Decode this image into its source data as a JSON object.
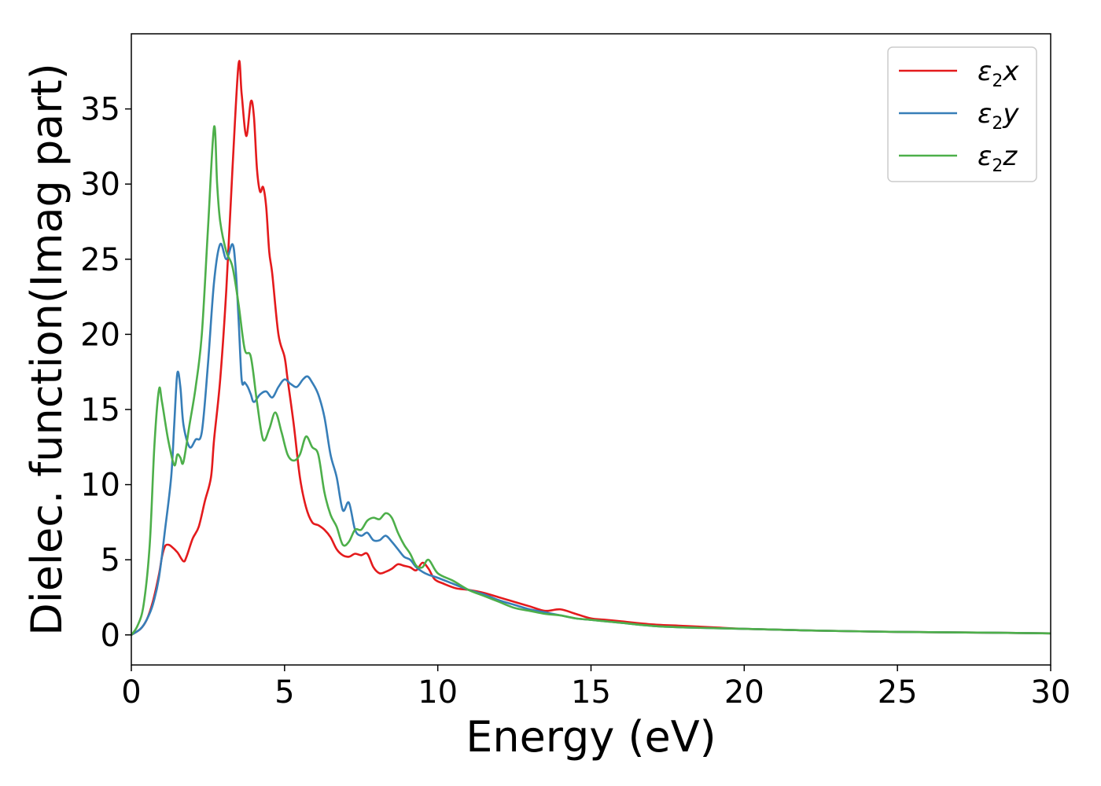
{
  "chart_data": {
    "type": "line",
    "title": "",
    "xlabel": "Energy (eV)",
    "ylabel": "Dielec. function(Imag part)",
    "xlim": [
      0,
      30
    ],
    "ylim": [
      -2,
      40
    ],
    "xticks": [
      0,
      5,
      10,
      15,
      20,
      25,
      30
    ],
    "yticks": [
      0,
      5,
      10,
      15,
      20,
      25,
      30,
      35
    ],
    "grid": false,
    "legend_position": "top-right",
    "series": [
      {
        "name": "ε2x",
        "legend": {
          "base": "ε",
          "sub": "2",
          "tail": "x"
        },
        "color": "#e41a1c",
        "x": [
          0,
          0.3,
          0.5,
          0.7,
          0.9,
          1.0,
          1.1,
          1.2,
          1.3,
          1.5,
          1.7,
          1.8,
          2.0,
          2.2,
          2.4,
          2.6,
          2.7,
          2.9,
          3.1,
          3.3,
          3.5,
          3.6,
          3.75,
          3.9,
          4.0,
          4.1,
          4.2,
          4.3,
          4.4,
          4.5,
          4.6,
          4.8,
          5.0,
          5.1,
          5.3,
          5.5,
          5.7,
          5.9,
          6.1,
          6.3,
          6.5,
          6.7,
          6.9,
          7.1,
          7.3,
          7.5,
          7.7,
          7.9,
          8.1,
          8.3,
          8.5,
          8.7,
          8.9,
          9.1,
          9.3,
          9.5,
          9.7,
          9.9,
          10.2,
          10.6,
          11.0,
          11.5,
          12.0,
          12.5,
          13.0,
          13.5,
          14.0,
          14.5,
          15.0,
          15.5,
          16.0,
          17.0,
          18.0,
          19.0,
          20.0,
          22.0,
          25.0,
          28.0,
          30.0
        ],
        "y": [
          0,
          0.4,
          1.0,
          2.2,
          4.0,
          5.2,
          5.9,
          6.0,
          5.9,
          5.5,
          4.9,
          5.2,
          6.4,
          7.2,
          8.9,
          10.5,
          13.0,
          17.0,
          23.0,
          31.0,
          38.0,
          36.0,
          33.2,
          35.5,
          34.5,
          31.0,
          29.5,
          29.8,
          28.5,
          25.5,
          24.0,
          20.0,
          18.5,
          17.0,
          14.0,
          10.5,
          8.5,
          7.5,
          7.3,
          7.0,
          6.5,
          5.7,
          5.3,
          5.2,
          5.4,
          5.3,
          5.4,
          4.5,
          4.1,
          4.2,
          4.4,
          4.7,
          4.6,
          4.5,
          4.3,
          4.8,
          4.4,
          3.7,
          3.4,
          3.1,
          3.0,
          2.8,
          2.5,
          2.2,
          1.9,
          1.6,
          1.7,
          1.4,
          1.1,
          1.0,
          0.9,
          0.7,
          0.6,
          0.5,
          0.4,
          0.3,
          0.2,
          0.15,
          0.1
        ]
      },
      {
        "name": "ε2y",
        "legend": {
          "base": "ε",
          "sub": "2",
          "tail": "y"
        },
        "color": "#377eb8",
        "x": [
          0,
          0.3,
          0.5,
          0.7,
          0.9,
          1.1,
          1.3,
          1.4,
          1.5,
          1.6,
          1.7,
          1.9,
          2.1,
          2.3,
          2.5,
          2.7,
          2.9,
          3.1,
          3.3,
          3.4,
          3.5,
          3.6,
          3.7,
          3.8,
          3.9,
          4.0,
          4.2,
          4.4,
          4.6,
          4.8,
          5.0,
          5.2,
          5.4,
          5.6,
          5.75,
          5.9,
          6.1,
          6.3,
          6.5,
          6.7,
          6.9,
          7.1,
          7.3,
          7.5,
          7.7,
          7.9,
          8.1,
          8.3,
          8.5,
          8.7,
          8.9,
          9.1,
          9.3,
          9.5,
          9.7,
          10.0,
          10.5,
          11.0,
          11.5,
          12.0,
          12.5,
          13.0,
          13.5,
          14.0,
          14.5,
          15.0,
          15.5,
          16.0,
          17.0,
          18.0,
          19.0,
          20.0,
          22.0,
          25.0,
          28.0,
          30.0
        ],
        "y": [
          0,
          0.4,
          1.0,
          2.0,
          3.8,
          7.0,
          10.5,
          14.0,
          17.4,
          16.5,
          14.0,
          12.5,
          13.0,
          13.5,
          18.0,
          23.5,
          26.0,
          25.0,
          26.0,
          24.5,
          21.0,
          17.0,
          16.8,
          16.5,
          16.0,
          15.5,
          16.0,
          16.2,
          15.8,
          16.5,
          17.0,
          16.7,
          16.5,
          17.0,
          17.2,
          16.8,
          16.0,
          14.5,
          12.0,
          10.5,
          8.3,
          8.8,
          7.0,
          6.6,
          6.8,
          6.3,
          6.3,
          6.6,
          6.2,
          5.7,
          5.2,
          5.0,
          4.5,
          4.2,
          4.0,
          3.8,
          3.4,
          3.0,
          2.7,
          2.3,
          2.0,
          1.7,
          1.5,
          1.3,
          1.1,
          1.0,
          0.9,
          0.8,
          0.6,
          0.5,
          0.45,
          0.4,
          0.3,
          0.2,
          0.15,
          0.1
        ]
      },
      {
        "name": "ε2z",
        "legend": {
          "base": "ε",
          "sub": "2",
          "tail": "z"
        },
        "color": "#4daf4a",
        "x": [
          0,
          0.2,
          0.4,
          0.6,
          0.75,
          0.9,
          1.0,
          1.2,
          1.4,
          1.5,
          1.6,
          1.7,
          1.9,
          2.1,
          2.3,
          2.5,
          2.7,
          2.8,
          2.9,
          3.1,
          3.3,
          3.5,
          3.7,
          3.9,
          4.1,
          4.3,
          4.5,
          4.7,
          4.9,
          5.1,
          5.3,
          5.5,
          5.7,
          5.9,
          6.1,
          6.3,
          6.5,
          6.7,
          6.9,
          7.1,
          7.3,
          7.5,
          7.7,
          7.9,
          8.1,
          8.3,
          8.5,
          8.7,
          8.9,
          9.1,
          9.3,
          9.5,
          9.7,
          10.0,
          10.5,
          11.0,
          11.5,
          12.0,
          12.5,
          13.0,
          13.5,
          14.0,
          14.5,
          15.0,
          15.5,
          16.0,
          17.0,
          18.0,
          19.0,
          20.0,
          22.0,
          25.0,
          28.0,
          30.0
        ],
        "y": [
          0,
          0.6,
          2.0,
          6.0,
          12.5,
          16.3,
          15.5,
          13.0,
          11.3,
          12.0,
          11.8,
          11.5,
          14.0,
          16.5,
          20.0,
          27.0,
          33.8,
          30.0,
          27.5,
          25.5,
          24.5,
          22.0,
          19.0,
          18.5,
          15.5,
          13.0,
          13.7,
          14.8,
          13.5,
          12.0,
          11.6,
          12.0,
          13.2,
          12.5,
          12.0,
          9.5,
          8.0,
          7.2,
          6.0,
          6.2,
          7.0,
          7.0,
          7.6,
          7.8,
          7.7,
          8.1,
          7.8,
          6.8,
          6.0,
          5.4,
          4.6,
          4.5,
          5.0,
          4.1,
          3.6,
          3.0,
          2.6,
          2.2,
          1.8,
          1.6,
          1.4,
          1.3,
          1.1,
          1.0,
          0.9,
          0.8,
          0.6,
          0.5,
          0.45,
          0.4,
          0.3,
          0.2,
          0.15,
          0.1
        ]
      }
    ]
  }
}
